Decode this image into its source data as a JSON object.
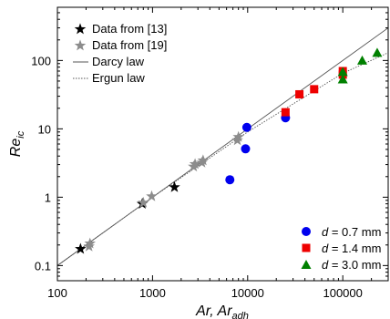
{
  "chart_data": {
    "type": "scatter",
    "xscale": "log",
    "yscale": "log",
    "xlim": [
      100,
      300000
    ],
    "ylim": [
      0.06,
      600
    ],
    "xticks": [
      {
        "value": 100,
        "label": "100"
      },
      {
        "value": 1000,
        "label": "1000"
      },
      {
        "value": 10000,
        "label": "10000"
      },
      {
        "value": 100000,
        "label": "100000"
      }
    ],
    "yticks": [
      {
        "value": 0.1,
        "label": "0.1"
      },
      {
        "value": 1,
        "label": "1"
      },
      {
        "value": 10,
        "label": "10"
      },
      {
        "value": 100,
        "label": "100"
      }
    ],
    "ylabel_main": "Re",
    "ylabel_sub": "ic",
    "xlabel_main": "Ar, Ar",
    "xlabel_sub": "adh",
    "grid": false,
    "legend_top_left": [
      {
        "label": "Data from [13]",
        "marker": "star",
        "color": "#000000"
      },
      {
        "label": "Data from [19]",
        "marker": "star",
        "color": "#8c8c8c"
      },
      {
        "label": "Darcy law",
        "marker": "line-solid",
        "color": "#555555"
      },
      {
        "label": "Ergun law",
        "marker": "line-dotted",
        "color": "#555555"
      }
    ],
    "legend_bottom_right": [
      {
        "symbol": "d",
        "text": " = 0.7 mm",
        "marker": "circle",
        "color": "#0000ee"
      },
      {
        "symbol": "d",
        "text": " = 1.4 mm",
        "marker": "square",
        "color": "#ee0000"
      },
      {
        "symbol": "d",
        "text": " = 3.0 mm",
        "marker": "triangle",
        "color": "#008000"
      }
    ],
    "lines": [
      {
        "name": "Darcy law",
        "style": "solid",
        "color": "#555555",
        "points": [
          [
            100,
            0.1
          ],
          [
            300000,
            300
          ]
        ]
      },
      {
        "name": "Ergun law",
        "style": "dotted",
        "color": "#555555",
        "points": [
          [
            100,
            0.1
          ],
          [
            1000,
            1.0
          ],
          [
            10000,
            9.0
          ],
          [
            100000,
            65
          ],
          [
            300000,
            130
          ]
        ]
      }
    ],
    "series": [
      {
        "name": "Data from [13]",
        "marker": "star",
        "color": "#000000",
        "points": [
          [
            175,
            0.175
          ],
          [
            780,
            0.8
          ],
          [
            1700,
            1.4
          ]
        ]
      },
      {
        "name": "Data from [19]",
        "marker": "star",
        "color": "#8c8c8c",
        "points": [
          [
            215,
            0.19
          ],
          [
            220,
            0.21
          ],
          [
            800,
            0.83
          ],
          [
            980,
            1.03
          ],
          [
            2700,
            2.8
          ],
          [
            2800,
            3.05
          ],
          [
            3300,
            3.2
          ],
          [
            3400,
            3.45
          ],
          [
            7800,
            6.8
          ],
          [
            8000,
            7.6
          ]
        ]
      },
      {
        "name": "d = 0.7 mm",
        "marker": "circle",
        "color": "#0000ee",
        "points": [
          [
            6500,
            1.8
          ],
          [
            9500,
            5.1
          ],
          [
            9800,
            10.5
          ],
          [
            25000,
            14.5
          ]
        ]
      },
      {
        "name": "d = 1.4 mm",
        "marker": "square",
        "color": "#ee0000",
        "points": [
          [
            25000,
            17.5
          ],
          [
            35000,
            32
          ],
          [
            50000,
            38
          ],
          [
            100000,
            62
          ],
          [
            100000,
            70
          ]
        ]
      },
      {
        "name": "d = 3.0 mm",
        "marker": "triangle",
        "color": "#008000",
        "points": [
          [
            100000,
            53
          ],
          [
            100000,
            68
          ],
          [
            160000,
            100
          ],
          [
            230000,
            130
          ]
        ]
      }
    ]
  }
}
